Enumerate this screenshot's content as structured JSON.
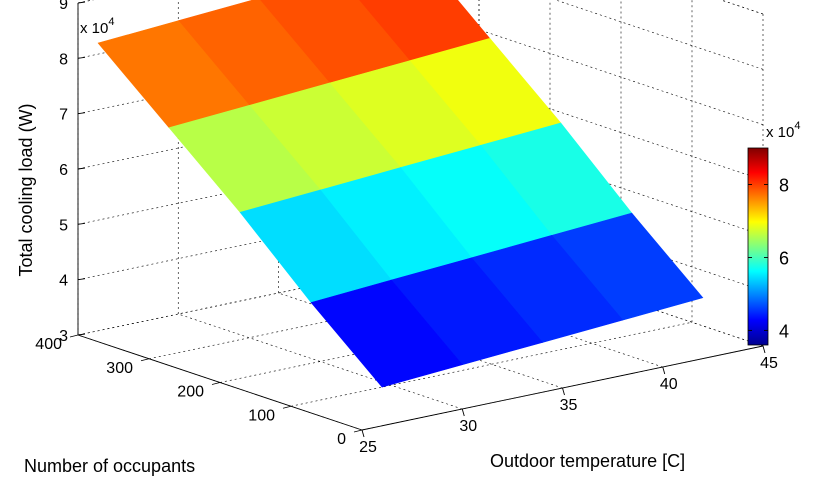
{
  "chart_data": {
    "type": "surface",
    "xlabel": "Outdoor temperature [C]",
    "ylabel": "Number of occupants",
    "zlabel": "Total cooling load (W)",
    "z_exponent_label": "x 10",
    "z_exponent_power": "4",
    "x_ticks": [
      "25",
      "30",
      "35",
      "40",
      "45"
    ],
    "y_ticks": [
      "0",
      "100",
      "200",
      "300",
      "400"
    ],
    "z_ticks": [
      "3",
      "4",
      "5",
      "6",
      "7",
      "8",
      "9"
    ],
    "xlim": [
      25,
      45
    ],
    "ylim": [
      0,
      400
    ],
    "zlim": [
      30000,
      90000
    ],
    "grid": true,
    "colormap": "jet",
    "x": [
      26,
      30,
      34,
      38,
      42
    ],
    "y": [
      0,
      100,
      200,
      300,
      400
    ],
    "z": [
      [
        37000,
        38000,
        39000,
        40000,
        41000
      ],
      [
        48000,
        49000,
        50000,
        51000,
        52000
      ],
      [
        60000,
        61000,
        62000,
        63000,
        64000
      ],
      [
        71000,
        72000,
        73000,
        74000,
        75000
      ],
      [
        82000,
        83000,
        84000,
        85000,
        86000
      ]
    ],
    "colorbar": {
      "ticks": [
        "4",
        "6",
        "8"
      ],
      "tick_values": [
        40000,
        60000,
        80000
      ],
      "exponent_label": "x 10",
      "exponent_power": "4",
      "range": [
        36000,
        90000
      ]
    }
  }
}
